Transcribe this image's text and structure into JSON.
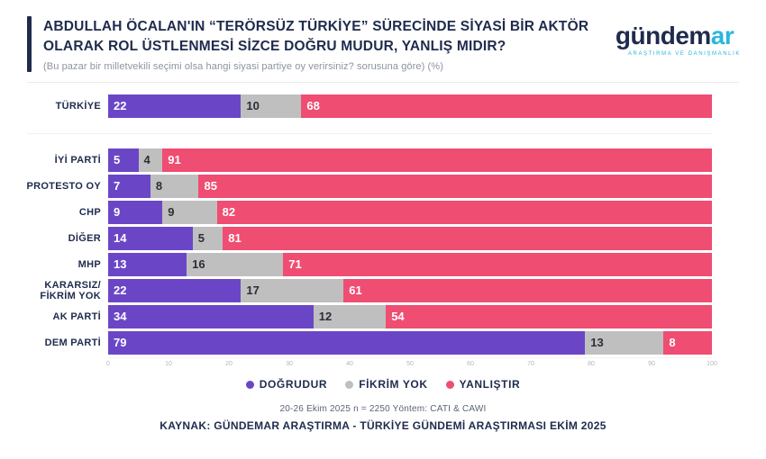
{
  "header": {
    "title_line1": "ABDULLAH ÖCALAN'IN “TERÖRSÜZ TÜRKİYE” SÜRECİNDE SİYASİ BİR AKTÖR",
    "title_line2": "OLARAK ROL ÜSTLENMESİ SİZCE DOĞRU MUDUR, YANLIŞ MIDIR?",
    "subtitle": "(Bu pazar bir milletvekili seçimi olsa hangi siyasi partiye oy verirsiniz? sorusuna göre) (%)"
  },
  "logo": {
    "part1": "gündem",
    "part2": "ar",
    "tagline": "ARAŞTIRMA VE DANIŞMANLIK"
  },
  "chart_data": {
    "type": "bar",
    "orientation": "horizontal",
    "stacked": true,
    "categories": [
      "TÜRKİYE",
      "İYİ PARTİ",
      "PROTESTO OY",
      "CHP",
      "DİĞER",
      "MHP",
      "KARARSIZ/\nFİKRİM YOK",
      "AK PARTİ",
      "DEM PARTİ"
    ],
    "series": [
      {
        "name": "DOĞRUDUR",
        "color": "#6a46c7",
        "label_color": "#ffffff",
        "values": [
          22,
          5,
          7,
          9,
          14,
          13,
          22,
          34,
          79
        ]
      },
      {
        "name": "FİKRİM YOK",
        "color": "#c0bfbf",
        "label_color": "#2b2f36",
        "values": [
          10,
          4,
          8,
          9,
          5,
          16,
          17,
          12,
          13
        ]
      },
      {
        "name": "YANLIŞTIR",
        "color": "#ef4d72",
        "label_color": "#ffffff",
        "values": [
          68,
          91,
          85,
          82,
          81,
          71,
          61,
          54,
          8
        ]
      }
    ],
    "x_ticks": [
      0,
      10,
      20,
      30,
      40,
      50,
      60,
      70,
      80,
      90,
      100
    ],
    "xlim": [
      0,
      100
    ],
    "legend_position": "bottom",
    "grid": false,
    "note": "First row (TÜRKİYE) is separated from party rows by a light divider line"
  },
  "footer": {
    "note": "20-26 Ekim 2025 n = 2250 Yöntem: CATI & CAWI",
    "source": "KAYNAK: GÜNDEMAR ARAŞTIRMA - TÜRKİYE GÜNDEMİ ARAŞTIRMASI EKİM 2025"
  },
  "colors": {
    "navy": "#1f2b4d",
    "cyan": "#2ab7d9",
    "purple": "#6a46c7",
    "gray": "#c0bfbf",
    "pink": "#ef4d72"
  }
}
